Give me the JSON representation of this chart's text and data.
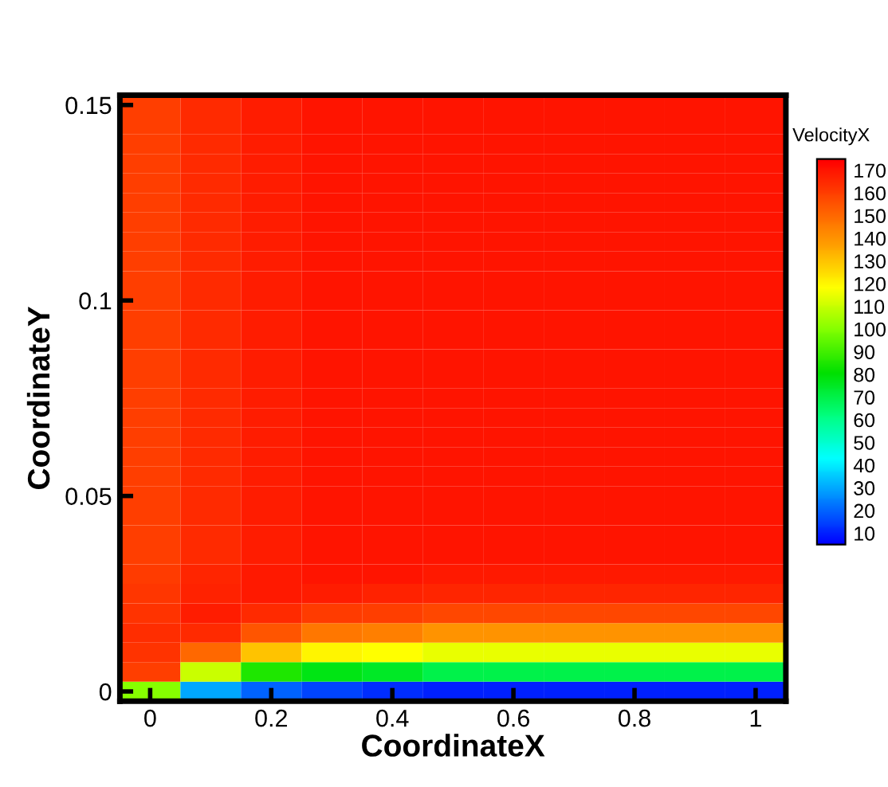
{
  "chart_data": {
    "type": "heatmap",
    "xlabel": "CoordinateX",
    "ylabel": "CoordinateY",
    "clabel": "VelocityX",
    "categories": [
      "0",
      null,
      "0.2",
      null,
      "0.4",
      null,
      "0.6",
      null,
      "0.8",
      null,
      "1"
    ],
    "y_categories": [
      "0.15",
      null,
      null,
      null,
      null,
      null,
      null,
      null,
      null,
      null,
      "0.1",
      null,
      null,
      null,
      null,
      null,
      null,
      null,
      null,
      null,
      "0.05",
      null,
      null,
      null,
      null,
      null,
      null,
      null,
      null,
      null,
      "0"
    ],
    "clim": [
      5,
      175
    ],
    "cticks": [
      10,
      20,
      30,
      40,
      50,
      60,
      70,
      80,
      90,
      100,
      110,
      120,
      130,
      140,
      150,
      160,
      170
    ],
    "cells": [
      [
        160,
        165,
        168,
        170,
        170,
        170,
        170,
        170,
        170,
        170,
        170
      ],
      [
        160,
        165,
        168,
        170,
        170,
        170,
        170,
        170,
        170,
        170,
        170
      ],
      [
        160,
        165,
        168,
        170,
        170,
        170,
        170,
        170,
        170,
        170,
        170
      ],
      [
        160,
        165,
        168,
        170,
        170,
        170,
        170,
        170,
        170,
        170,
        170
      ],
      [
        160,
        165,
        168,
        170,
        170,
        170,
        170,
        170,
        170,
        170,
        170
      ],
      [
        160,
        165,
        168,
        170,
        170,
        170,
        170,
        170,
        170,
        170,
        170
      ],
      [
        160,
        165,
        168,
        170,
        170,
        170,
        170,
        170,
        170,
        170,
        170
      ],
      [
        160,
        165,
        168,
        170,
        170,
        170,
        170,
        170,
        170,
        170,
        170
      ],
      [
        160,
        165,
        168,
        170,
        170,
        170,
        170,
        170,
        170,
        170,
        170
      ],
      [
        160,
        165,
        168,
        170,
        170,
        170,
        170,
        170,
        170,
        170,
        170
      ],
      [
        160,
        165,
        168,
        170,
        170,
        170,
        170,
        170,
        170,
        170,
        170
      ],
      [
        160,
        165,
        168,
        170,
        170,
        170,
        170,
        170,
        170,
        170,
        170
      ],
      [
        160,
        165,
        168,
        170,
        170,
        170,
        170,
        170,
        170,
        170,
        170
      ],
      [
        160,
        165,
        168,
        170,
        170,
        170,
        170,
        170,
        170,
        170,
        170
      ],
      [
        160,
        165,
        168,
        170,
        170,
        170,
        170,
        170,
        170,
        170,
        170
      ],
      [
        160,
        165,
        168,
        170,
        170,
        170,
        170,
        170,
        170,
        170,
        170
      ],
      [
        160,
        165,
        168,
        170,
        170,
        170,
        170,
        170,
        170,
        170,
        170
      ],
      [
        160,
        165,
        168,
        170,
        170,
        170,
        170,
        170,
        170,
        170,
        170
      ],
      [
        160,
        165,
        168,
        170,
        170,
        170,
        170,
        170,
        170,
        170,
        170
      ],
      [
        160,
        165,
        168,
        170,
        170,
        170,
        170,
        170,
        170,
        170,
        170
      ],
      [
        160,
        165,
        168,
        170,
        170,
        170,
        170,
        170,
        170,
        170,
        170
      ],
      [
        160,
        165,
        168,
        170,
        170,
        170,
        170,
        170,
        170,
        170,
        170
      ],
      [
        160,
        165,
        168,
        170,
        170,
        170,
        170,
        170,
        170,
        170,
        170
      ],
      [
        160,
        165,
        168,
        170,
        170,
        170,
        170,
        170,
        170,
        170,
        170
      ],
      [
        161,
        166,
        169,
        170,
        170,
        169,
        169,
        169,
        169,
        169,
        169
      ],
      [
        162,
        167,
        169,
        168,
        167,
        166,
        166,
        166,
        166,
        166,
        166
      ],
      [
        163,
        168,
        165,
        161,
        160,
        158,
        158,
        158,
        158,
        158,
        158
      ],
      [
        164,
        165,
        155,
        147,
        145,
        140,
        140,
        140,
        140,
        140,
        140
      ],
      [
        163,
        150,
        130,
        120,
        118,
        115,
        115,
        115,
        115,
        115,
        115
      ],
      [
        160,
        110,
        85,
        78,
        75,
        70,
        70,
        70,
        70,
        70,
        70
      ],
      [
        100,
        30,
        20,
        15,
        12,
        10,
        10,
        10,
        10,
        10,
        10
      ]
    ]
  }
}
